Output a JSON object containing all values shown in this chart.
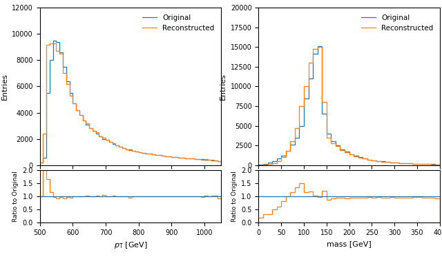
{
  "color_original": "#1f77b4",
  "color_reconstructed": "#ff7f0e",
  "pt_xlim": [
    500,
    1050
  ],
  "pt_ylim": [
    0,
    12000
  ],
  "pt_ratio_ylim": [
    0.0,
    2.0
  ],
  "pt_xlabel": "$p_{\\rm T}$ [GeV]",
  "pt_ylabel": "Entries",
  "pt_ratio_ylabel": "Ratio to Original",
  "mass_xlim": [
    0,
    400
  ],
  "mass_ylim": [
    0,
    20000
  ],
  "mass_ratio_ylim": [
    0.0,
    2.0
  ],
  "mass_xlabel": "mass [GeV]",
  "mass_ylabel": "Entries",
  "mass_ratio_ylabel": "Ratio to Original",
  "legend_labels": [
    "Original",
    "Reconstructed"
  ],
  "pt_edges": [
    500,
    510,
    520,
    530,
    540,
    550,
    560,
    570,
    580,
    590,
    600,
    610,
    620,
    630,
    640,
    650,
    660,
    670,
    680,
    690,
    700,
    710,
    720,
    730,
    740,
    750,
    760,
    770,
    780,
    790,
    800,
    810,
    820,
    830,
    840,
    850,
    860,
    870,
    880,
    890,
    900,
    910,
    920,
    930,
    940,
    950,
    960,
    970,
    980,
    990,
    1000,
    1010,
    1020,
    1030,
    1040,
    1050
  ],
  "pt_vals_orig": [
    200,
    550,
    5500,
    8000,
    9500,
    9400,
    8600,
    7500,
    6400,
    5500,
    4700,
    4200,
    3800,
    3400,
    3100,
    2800,
    2600,
    2400,
    2200,
    2000,
    1900,
    1750,
    1600,
    1500,
    1400,
    1300,
    1200,
    1200,
    1100,
    1050,
    1000,
    950,
    900,
    850,
    820,
    780,
    750,
    720,
    680,
    650,
    620,
    600,
    570,
    550,
    530,
    510,
    490,
    470,
    450,
    430,
    420,
    400,
    370,
    350,
    300
  ],
  "pt_vals_recon": [
    200,
    2400,
    9200,
    9300,
    9300,
    8700,
    8500,
    7000,
    6200,
    5300,
    4700,
    4200,
    3800,
    3400,
    3200,
    2800,
    2600,
    2500,
    2200,
    2100,
    1900,
    1750,
    1650,
    1500,
    1400,
    1300,
    1200,
    1150,
    1100,
    1050,
    1000,
    950,
    900,
    850,
    820,
    780,
    750,
    720,
    680,
    650,
    630,
    600,
    570,
    550,
    530,
    510,
    490,
    470,
    450,
    420,
    430,
    400,
    380,
    360,
    280
  ],
  "mass_edges": [
    0,
    10,
    20,
    30,
    40,
    50,
    60,
    70,
    80,
    90,
    100,
    110,
    120,
    130,
    140,
    150,
    160,
    170,
    180,
    190,
    200,
    210,
    220,
    230,
    240,
    250,
    260,
    270,
    280,
    290,
    300,
    310,
    320,
    330,
    340,
    350,
    360,
    370,
    380,
    390,
    400
  ],
  "mass_vals_orig": [
    50,
    150,
    300,
    500,
    800,
    1200,
    1800,
    2600,
    3500,
    5000,
    8500,
    11000,
    14200,
    15100,
    6500,
    4000,
    3000,
    2500,
    2000,
    1700,
    1400,
    1200,
    1000,
    850,
    700,
    600,
    500,
    450,
    400,
    350,
    300,
    270,
    240,
    200,
    170,
    160,
    150,
    120,
    100,
    80
  ],
  "mass_vals_recon": [
    10,
    50,
    100,
    250,
    500,
    1000,
    1800,
    3000,
    4700,
    7500,
    10000,
    13000,
    14800,
    15000,
    8000,
    3500,
    2800,
    2400,
    1900,
    1600,
    1350,
    1150,
    950,
    820,
    680,
    580,
    490,
    430,
    380,
    340,
    290,
    260,
    230,
    190,
    165,
    155,
    145,
    115,
    95,
    75
  ]
}
